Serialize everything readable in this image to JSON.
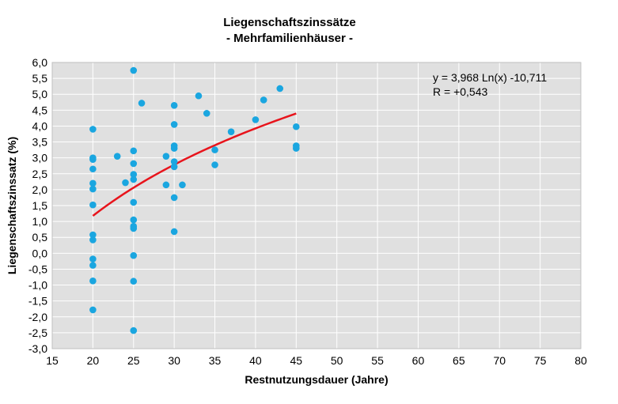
{
  "chart_data": {
    "type": "scatter",
    "title": "Liegenschaftszinssätze",
    "subtitle": "- Mehrfamilienhäuser -",
    "xlabel": "Restnutzungsdauer (Jahre)",
    "ylabel": "Liegenschaftszinssatz (%)",
    "xlim": [
      15,
      80
    ],
    "ylim": [
      -3.0,
      6.0
    ],
    "x_ticks": [
      15,
      20,
      25,
      30,
      35,
      40,
      45,
      50,
      55,
      60,
      65,
      70,
      75,
      80
    ],
    "x_tick_labels": [
      "15",
      "20",
      "25",
      "30",
      "35",
      "40",
      "45",
      "50",
      "55",
      "60",
      "65",
      "70",
      "75",
      "80"
    ],
    "y_ticks": [
      6.0,
      5.5,
      5.0,
      4.5,
      4.0,
      3.5,
      3.0,
      2.5,
      2.0,
      1.5,
      1.0,
      0.5,
      0.0,
      -0.5,
      -1.0,
      -1.5,
      -2.0,
      -2.5,
      -3.0
    ],
    "y_tick_labels": [
      "6,0",
      "5,5",
      "5,0",
      "4,5",
      "4,0",
      "3,5",
      "3,0",
      "2,5",
      "2,0",
      "1,5",
      "1,0",
      "0,5",
      "0,0",
      "-0,5",
      "-1,0",
      "-1,5",
      "-2,0",
      "-2,5",
      "-3,0"
    ],
    "grid": true,
    "point_color": "#1aa6e0",
    "trend_color": "#e8141c",
    "plot_background": "#e0e0e0",
    "points": [
      [
        20,
        3.9
      ],
      [
        20,
        3.0
      ],
      [
        20,
        2.95
      ],
      [
        20,
        2.65
      ],
      [
        20,
        2.2
      ],
      [
        20,
        2.02
      ],
      [
        20,
        1.52
      ],
      [
        20,
        0.58
      ],
      [
        20,
        0.42
      ],
      [
        20,
        -0.18
      ],
      [
        20,
        -0.38
      ],
      [
        20,
        -0.87
      ],
      [
        20,
        -1.78
      ],
      [
        23,
        3.05
      ],
      [
        24,
        2.22
      ],
      [
        25,
        5.75
      ],
      [
        25,
        3.22
      ],
      [
        25,
        2.82
      ],
      [
        25,
        2.48
      ],
      [
        25,
        2.32
      ],
      [
        25,
        1.6
      ],
      [
        25,
        1.05
      ],
      [
        25,
        0.85
      ],
      [
        25,
        0.78
      ],
      [
        25,
        -0.07
      ],
      [
        25,
        -0.88
      ],
      [
        25,
        -2.43
      ],
      [
        26,
        4.72
      ],
      [
        29,
        3.05
      ],
      [
        29,
        2.15
      ],
      [
        30,
        4.65
      ],
      [
        30,
        4.05
      ],
      [
        30,
        3.38
      ],
      [
        30,
        3.3
      ],
      [
        30,
        2.88
      ],
      [
        30,
        2.72
      ],
      [
        30,
        1.75
      ],
      [
        30,
        0.68
      ],
      [
        31,
        2.15
      ],
      [
        33,
        4.95
      ],
      [
        34,
        4.4
      ],
      [
        35,
        3.25
      ],
      [
        35,
        2.78
      ],
      [
        37,
        3.82
      ],
      [
        40,
        4.2
      ],
      [
        41,
        4.82
      ],
      [
        43,
        5.18
      ],
      [
        45,
        3.98
      ],
      [
        45,
        3.38
      ],
      [
        45,
        3.3
      ]
    ],
    "trendline": {
      "type": "logarithmic",
      "a": 3.968,
      "b": -10.711,
      "x_range": [
        20,
        45
      ],
      "equation_label": "y =  3,968 Ln(x) -10,711",
      "r_label": "R = +0,543"
    }
  }
}
